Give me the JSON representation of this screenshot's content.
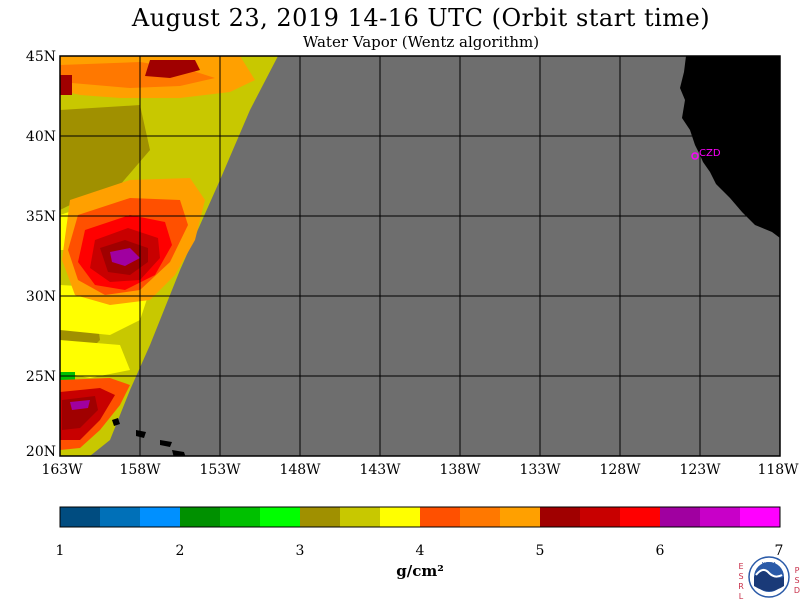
{
  "title": "August 23, 2019  14-16 UTC  (Orbit start time)",
  "subtitle": "Water Vapor (Wentz algorithm)",
  "x_ticks": [
    "163W",
    "158W",
    "153W",
    "148W",
    "143W",
    "138W",
    "133W",
    "128W",
    "123W",
    "118W"
  ],
  "y_ticks": [
    "45N",
    "40N",
    "35N",
    "30N",
    "25N",
    "20N"
  ],
  "station_label": "CZD",
  "colorbar": {
    "labels": [
      "1",
      "2",
      "3",
      "4",
      "5",
      "6",
      "7"
    ],
    "units": "g/cm²",
    "colors": [
      "#004c80",
      "#0070b8",
      "#0090ff",
      "#009000",
      "#00c000",
      "#00ff00",
      "#a09000",
      "#c8c800",
      "#ffff00",
      "#ff5000",
      "#ff7800",
      "#ffa000",
      "#a00000",
      "#c80000",
      "#ff0000",
      "#a000a0",
      "#c800c8",
      "#ff00ff"
    ]
  },
  "colors": {
    "no_data": "#6e6e6e",
    "land": "#000000",
    "grid": "#000000",
    "station": "#ff00ff"
  },
  "logo": {
    "left_letters": [
      "E",
      "S",
      "R",
      "L"
    ],
    "right_letters": [
      "P",
      "S",
      "D"
    ],
    "text": "NOAA"
  }
}
